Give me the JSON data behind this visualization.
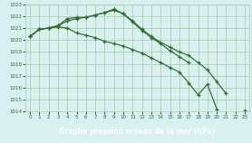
{
  "x": [
    0,
    1,
    2,
    3,
    4,
    5,
    6,
    7,
    8,
    9,
    10,
    11,
    12,
    13,
    14,
    15,
    16,
    17,
    18,
    19,
    20,
    21,
    22,
    23
  ],
  "line1": [
    1020.3,
    1020.9,
    1021.0,
    1021.2,
    1021.8,
    1021.9,
    1021.9,
    1022.1,
    1022.3,
    1022.6,
    1022.2,
    1021.6,
    1020.9,
    1020.3,
    1019.8,
    1019.4,
    1019.0,
    1018.7,
    1018.1,
    1017.5,
    1016.5,
    1015.5,
    null,
    null
  ],
  "line2": [
    1020.3,
    1020.9,
    1021.0,
    1021.2,
    1021.6,
    1021.8,
    1021.9,
    1022.1,
    1022.3,
    1022.5,
    1022.2,
    1021.5,
    1020.8,
    1020.2,
    1019.7,
    1019.1,
    1018.6,
    1018.1,
    null,
    null,
    null,
    null,
    null,
    null
  ],
  "line3": [
    1020.3,
    1020.9,
    1021.0,
    1021.1,
    1021.0,
    1020.6,
    1020.4,
    1020.2,
    1019.9,
    1019.7,
    1019.5,
    1019.2,
    1018.9,
    1018.5,
    1018.1,
    1017.7,
    1017.3,
    1016.4,
    1015.4,
    1016.3,
    1014.2,
    null,
    null,
    1014.1
  ],
  "ylim": [
    1014,
    1023
  ],
  "yticks": [
    1014,
    1015,
    1016,
    1017,
    1018,
    1019,
    1020,
    1021,
    1022,
    1023
  ],
  "xticks": [
    0,
    1,
    2,
    3,
    4,
    5,
    6,
    7,
    8,
    9,
    10,
    11,
    12,
    13,
    14,
    15,
    16,
    17,
    18,
    19,
    20,
    21,
    22,
    23
  ],
  "line_color": "#2d6e2d",
  "bg_color": "#d8f0f0",
  "grid_color": "#a8c8a8",
  "xlabel": "Graphe pression niveau de la mer (hPa)",
  "xlabel_bg": "#4aaa4a",
  "xlabel_fg": "#ffffff"
}
